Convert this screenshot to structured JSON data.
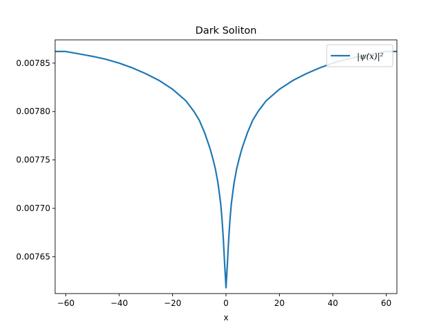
{
  "chart_data": {
    "type": "line",
    "title": "Dark Soliton",
    "xlabel": "x",
    "ylabel": "",
    "xlim": [
      -64,
      64
    ],
    "ylim": [
      0.007612,
      0.007874
    ],
    "x_ticks": [
      -60,
      -40,
      -20,
      0,
      20,
      40,
      60
    ],
    "x_tick_labels": [
      "−60",
      "−40",
      "−20",
      "0",
      "20",
      "40",
      "60"
    ],
    "y_ticks": [
      0.00765,
      0.0077,
      0.00775,
      0.0078,
      0.00785
    ],
    "y_tick_labels": [
      "0.00765",
      "0.00770",
      "0.00775",
      "0.00780",
      "0.00785"
    ],
    "legend_position": "top-right",
    "grid": false,
    "series": [
      {
        "name": "|ψ(x)|²",
        "color": "#1f77b4",
        "x": [
          -64,
          -60,
          -56,
          -50,
          -45,
          -40,
          -35,
          -30,
          -25,
          -20,
          -15,
          -12,
          -10,
          -8,
          -6,
          -5,
          -4,
          -3,
          -2,
          -1.5,
          -1,
          -0.5,
          0,
          0.5,
          1,
          1.5,
          2,
          3,
          4,
          5,
          6,
          8,
          10,
          12,
          15,
          20,
          25,
          30,
          35,
          40,
          45,
          50,
          56,
          60,
          64
        ],
        "values": [
          0.007862,
          0.007862,
          0.00786,
          0.007857,
          0.007854,
          0.00785,
          0.007845,
          0.007839,
          0.007832,
          0.007823,
          0.007811,
          0.0078,
          0.007791,
          0.007778,
          0.007762,
          0.007752,
          0.007741,
          0.007726,
          0.007705,
          0.007689,
          0.007668,
          0.007642,
          0.007618,
          0.007642,
          0.007668,
          0.007689,
          0.007705,
          0.007726,
          0.007741,
          0.007752,
          0.007762,
          0.007778,
          0.007791,
          0.0078,
          0.007811,
          0.007823,
          0.007832,
          0.007839,
          0.007845,
          0.00785,
          0.007854,
          0.007857,
          0.00786,
          0.007862,
          0.007862
        ]
      }
    ]
  }
}
